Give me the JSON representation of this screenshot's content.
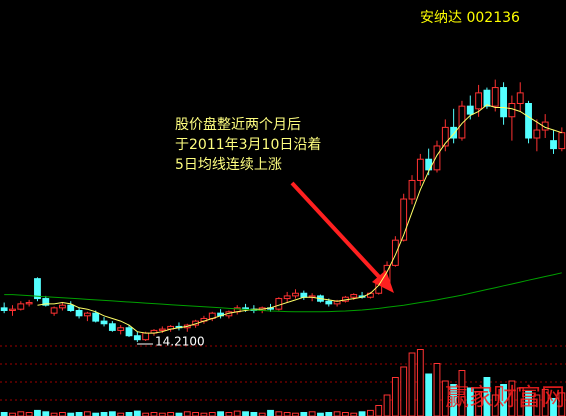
{
  "chart_data": {
    "type": "candlestick",
    "title": "安纳达 002136",
    "annotation": [
      "股价盘整近两个月后",
      "于2011年3月10日沿着",
      "5日均线连续上涨"
    ],
    "low_label": "14.2100",
    "watermark": "赢家财富网",
    "ylim": [
      14.1,
      27.1
    ],
    "vlim": [
      0,
      100
    ],
    "up_color": "#ff3232",
    "down_color": "#54ffff",
    "open": [
      15.5,
      15.4,
      15.45,
      15.65,
      16.6,
      15.85,
      15.3,
      15.5,
      15.6,
      15.4,
      15.2,
      15.3,
      15.0,
      14.9,
      14.65,
      14.75,
      14.45,
      14.3,
      14.55,
      14.65,
      14.7,
      14.8,
      14.75,
      14.85,
      15.0,
      15.1,
      15.3,
      15.2,
      15.35,
      15.5,
      15.45,
      15.4,
      15.5,
      15.45,
      15.85,
      15.95,
      16.05,
      15.9,
      15.95,
      15.75,
      15.65,
      15.75,
      15.9,
      15.95,
      15.9,
      16.05,
      16.4,
      17.1,
      18.05,
      19.6,
      20.3,
      21.1,
      20.7,
      21.6,
      22.3,
      21.9,
      23.1,
      23.0,
      23.7,
      23.1,
      23.8,
      22.7,
      23.2,
      23.2,
      21.9,
      22.2,
      21.8,
      21.5
    ],
    "high": [
      15.7,
      15.6,
      15.75,
      15.8,
      16.65,
      15.95,
      15.55,
      15.7,
      15.75,
      15.5,
      15.35,
      15.4,
      15.15,
      15.0,
      14.85,
      14.85,
      14.6,
      14.6,
      14.7,
      14.8,
      14.85,
      14.95,
      14.9,
      15.05,
      15.2,
      15.35,
      15.45,
      15.4,
      15.6,
      15.65,
      15.6,
      15.55,
      15.65,
      15.9,
      16.1,
      16.2,
      16.15,
      16.05,
      16.0,
      15.85,
      15.8,
      15.95,
      16.05,
      16.1,
      16.1,
      16.5,
      17.25,
      18.2,
      19.8,
      20.5,
      21.3,
      21.5,
      21.8,
      22.6,
      23.0,
      23.3,
      23.5,
      23.9,
      23.8,
      24.1,
      24.0,
      23.5,
      24.0,
      23.3,
      22.6,
      22.8,
      22.2,
      22.3
    ],
    "low": [
      15.3,
      15.2,
      15.4,
      15.55,
      15.75,
      15.55,
      15.2,
      15.4,
      15.35,
      15.1,
      15.0,
      14.95,
      14.8,
      14.6,
      14.5,
      14.4,
      14.21,
      14.25,
      14.45,
      14.55,
      14.6,
      14.65,
      14.6,
      14.75,
      14.9,
      15.0,
      15.1,
      15.1,
      15.25,
      15.35,
      15.3,
      15.3,
      15.35,
      15.4,
      15.7,
      15.85,
      15.8,
      15.75,
      15.7,
      15.55,
      15.55,
      15.7,
      15.8,
      15.85,
      15.85,
      16.0,
      16.35,
      17.05,
      18.0,
      19.4,
      20.1,
      20.5,
      20.6,
      21.4,
      21.7,
      21.8,
      22.6,
      22.7,
      23.0,
      22.9,
      22.4,
      21.8,
      22.9,
      21.7,
      21.4,
      21.9,
      21.3,
      21.4
    ],
    "close": [
      15.4,
      15.45,
      15.65,
      15.7,
      15.85,
      15.6,
      15.5,
      15.6,
      15.4,
      15.2,
      15.3,
      15.0,
      14.9,
      14.65,
      14.75,
      14.45,
      14.3,
      14.55,
      14.65,
      14.7,
      14.8,
      14.75,
      14.85,
      15.0,
      15.1,
      15.3,
      15.2,
      15.35,
      15.5,
      15.45,
      15.4,
      15.5,
      15.45,
      15.85,
      15.95,
      16.05,
      15.9,
      15.95,
      15.75,
      15.65,
      15.75,
      15.9,
      16.0,
      15.9,
      16.05,
      16.4,
      17.1,
      18.05,
      19.6,
      20.3,
      21.1,
      20.7,
      21.6,
      22.3,
      21.9,
      23.1,
      22.8,
      23.6,
      23.1,
      23.8,
      22.7,
      23.2,
      23.6,
      21.9,
      22.2,
      22.5,
      21.5,
      22.1
    ],
    "volume": [
      5,
      4,
      6,
      5,
      8,
      6,
      4,
      5,
      4,
      5,
      6,
      4,
      5,
      6,
      4,
      5,
      7,
      4,
      5,
      4,
      5,
      4,
      6,
      5,
      4,
      5,
      6,
      5,
      7,
      6,
      5,
      4,
      8,
      6,
      5,
      4,
      5,
      6,
      4,
      5,
      6,
      5,
      4,
      6,
      8,
      15,
      30,
      55,
      70,
      90,
      95,
      60,
      75,
      50,
      45,
      65,
      40,
      35,
      55,
      30,
      45,
      50,
      40,
      35,
      30,
      38,
      25,
      33
    ],
    "series": [
      {
        "name": "MA5",
        "color": "#ffff66",
        "values": [
          null,
          null,
          null,
          null,
          15.6,
          15.65,
          15.65,
          15.7,
          15.65,
          15.5,
          15.45,
          15.35,
          15.2,
          15.1,
          15.0,
          14.85,
          14.6,
          14.55,
          14.55,
          14.6,
          14.7,
          14.75,
          14.8,
          14.9,
          15.0,
          15.1,
          15.2,
          15.3,
          15.35,
          15.4,
          15.45,
          15.45,
          15.5,
          15.6,
          15.7,
          15.8,
          15.9,
          15.9,
          15.85,
          15.8,
          15.75,
          15.8,
          15.85,
          15.9,
          16.05,
          16.35,
          16.85,
          17.5,
          18.25,
          19.1,
          19.95,
          20.65,
          21.25,
          21.7,
          22.05,
          22.45,
          22.75,
          22.9,
          23.15,
          23.05,
          23.05,
          23.0,
          22.9,
          22.7,
          22.5,
          22.3,
          22.2,
          22.1
        ]
      },
      {
        "name": "MA60",
        "color": "#00a000",
        "values": [
          16.0,
          16.0,
          15.98,
          15.96,
          15.94,
          15.92,
          15.9,
          15.88,
          15.86,
          15.84,
          15.82,
          15.8,
          15.78,
          15.76,
          15.74,
          15.72,
          15.7,
          15.68,
          15.66,
          15.64,
          15.62,
          15.6,
          15.58,
          15.56,
          15.54,
          15.52,
          15.5,
          15.48,
          15.46,
          15.44,
          15.42,
          15.4,
          15.38,
          15.37,
          15.36,
          15.35,
          15.35,
          15.35,
          15.35,
          15.36,
          15.37,
          15.38,
          15.4,
          15.42,
          15.45,
          15.48,
          15.52,
          15.56,
          15.6,
          15.65,
          15.7,
          15.75,
          15.8,
          15.86,
          15.92,
          15.98,
          16.05,
          16.12,
          16.19,
          16.26,
          16.33,
          16.4,
          16.47,
          16.54,
          16.61,
          16.68,
          16.75,
          16.82
        ]
      }
    ]
  }
}
